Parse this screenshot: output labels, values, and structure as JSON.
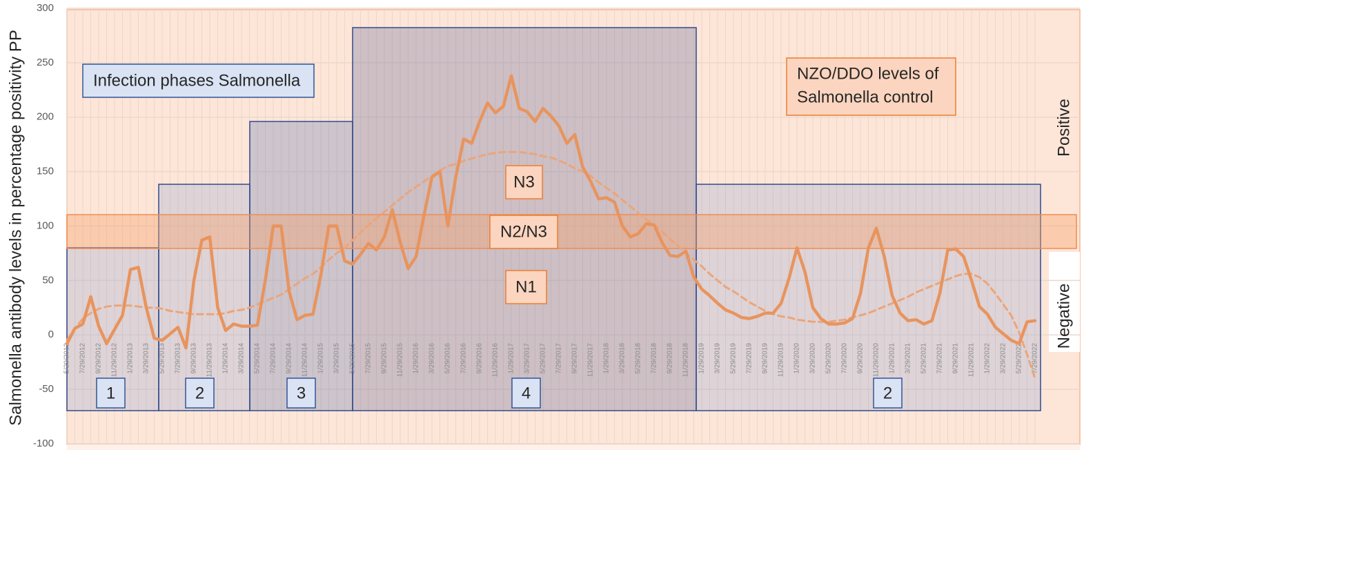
{
  "chart_data": {
    "type": "line",
    "ylabel": "Salmonella antibody levels in percentage positivity PP",
    "ylim": [
      -100,
      300
    ],
    "yticks": [
      -100,
      -50,
      0,
      50,
      100,
      150,
      200,
      250,
      300
    ],
    "grid": true,
    "categories": [
      "5/29/2012",
      null,
      "7/29/2012",
      null,
      "9/29/2012",
      null,
      "11/29/2012",
      null,
      "1/29/2013",
      null,
      "3/29/2013",
      null,
      "5/29/2013",
      null,
      "7/29/2013",
      null,
      "9/29/2013",
      null,
      "11/29/2013",
      null,
      "1/29/2014",
      null,
      "3/29/2014",
      null,
      "5/29/2014",
      null,
      "7/29/2014",
      null,
      "9/29/2014",
      null,
      "11/29/2014",
      null,
      "1/29/2015",
      null,
      "3/29/2015",
      null,
      "5/29/2015",
      null,
      "7/29/2015",
      null,
      "9/29/2015",
      null,
      "11/29/2015",
      null,
      "1/29/2016",
      null,
      "3/29/2016",
      null,
      "5/29/2016",
      null,
      "7/29/2016",
      null,
      "9/29/2016",
      null,
      "11/29/2016",
      null,
      "1/29/2017",
      null,
      "3/29/2017",
      null,
      "5/29/2017",
      null,
      "7/29/2017",
      null,
      "9/29/2017",
      null,
      "11/29/2017",
      null,
      "1/29/2018",
      null,
      "3/29/2018",
      null,
      "5/29/2018",
      null,
      "7/29/2018",
      null,
      "9/29/2018",
      null,
      "11/29/2018",
      null,
      "1/29/2019",
      null,
      "3/29/2019",
      null,
      "5/29/2019",
      null,
      "7/29/2019",
      null,
      "9/29/2019",
      null,
      "11/29/2019",
      null,
      "1/29/2020",
      null,
      "3/29/2020",
      null,
      "5/29/2020",
      null,
      "7/29/2020",
      null,
      "9/29/2020",
      null,
      "11/29/2020",
      null,
      "1/29/2021",
      null,
      "3/29/2021",
      null,
      "5/29/2021",
      null,
      "7/29/2021",
      null,
      "9/29/2021",
      null,
      "11/29/2021",
      null,
      "1/29/2022",
      null,
      "3/29/2022",
      null,
      "5/29/2022",
      null,
      "7/29/2022"
    ],
    "series": [
      {
        "color": "#e8945e",
        "values": [
          -8,
          6,
          10,
          35,
          8,
          -8,
          5,
          18,
          60,
          62,
          25,
          -3,
          -5,
          1,
          7,
          -12,
          50,
          87,
          90,
          25,
          4,
          10,
          8,
          8,
          9,
          50,
          100,
          100,
          40,
          14,
          18,
          19,
          55,
          100,
          100,
          68,
          65,
          74,
          84,
          78,
          90,
          115,
          85,
          61,
          72,
          110,
          145,
          150,
          100,
          145,
          180,
          176,
          196,
          213,
          204,
          210,
          238,
          208,
          205,
          196,
          208,
          201,
          192,
          176,
          184,
          154,
          141,
          125,
          126,
          122,
          100,
          90,
          93,
          102,
          101,
          85,
          73,
          72,
          77,
          53,
          42,
          36,
          29,
          23,
          20,
          16,
          15,
          17,
          20,
          20,
          29,
          52,
          80,
          58,
          25,
          15,
          10,
          10,
          11,
          15,
          38,
          80,
          98,
          72,
          36,
          20,
          13,
          14,
          10,
          13,
          38,
          78,
          79,
          72,
          50,
          26,
          19,
          7,
          1,
          -5,
          -8,
          12,
          13
        ]
      },
      {
        "color": "#eba57a",
        "dashed": true,
        "values": [
          -5,
          6,
          15,
          20,
          24,
          26,
          27,
          27,
          27,
          26,
          25,
          25,
          24,
          22,
          21,
          20,
          19,
          19,
          19,
          19,
          20,
          22,
          23,
          25,
          28,
          31,
          34,
          37,
          42,
          47,
          52,
          56,
          62,
          69,
          75,
          80,
          87,
          94,
          101,
          107,
          113,
          119,
          125,
          131,
          136,
          141,
          146,
          151,
          155,
          157,
          160,
          162,
          164,
          166,
          167,
          168,
          168,
          168,
          167,
          166,
          164,
          163,
          160,
          157,
          153,
          150,
          146,
          140,
          135,
          130,
          124,
          118,
          112,
          106,
          101,
          95,
          88,
          82,
          75,
          69,
          63,
          56,
          50,
          44,
          40,
          35,
          30,
          26,
          22,
          19,
          17,
          16,
          14,
          13,
          12,
          12,
          12,
          13,
          14,
          16,
          18,
          20,
          23,
          26,
          29,
          32,
          35,
          39,
          42,
          45,
          48,
          51,
          54,
          56,
          56,
          53,
          47,
          38,
          28,
          18,
          2,
          -18,
          -40
        ]
      }
    ],
    "annotations": {
      "phase_title": "Infection phases Salmonella",
      "levels_title": [
        "NZO/DDO levels of",
        "Salmonella control"
      ],
      "levels": [
        "N3",
        "N2/N3",
        "N1"
      ],
      "regions": [
        "Positive",
        "Negative"
      ],
      "phases": [
        "1",
        "2",
        "3",
        "4",
        "2"
      ]
    }
  }
}
